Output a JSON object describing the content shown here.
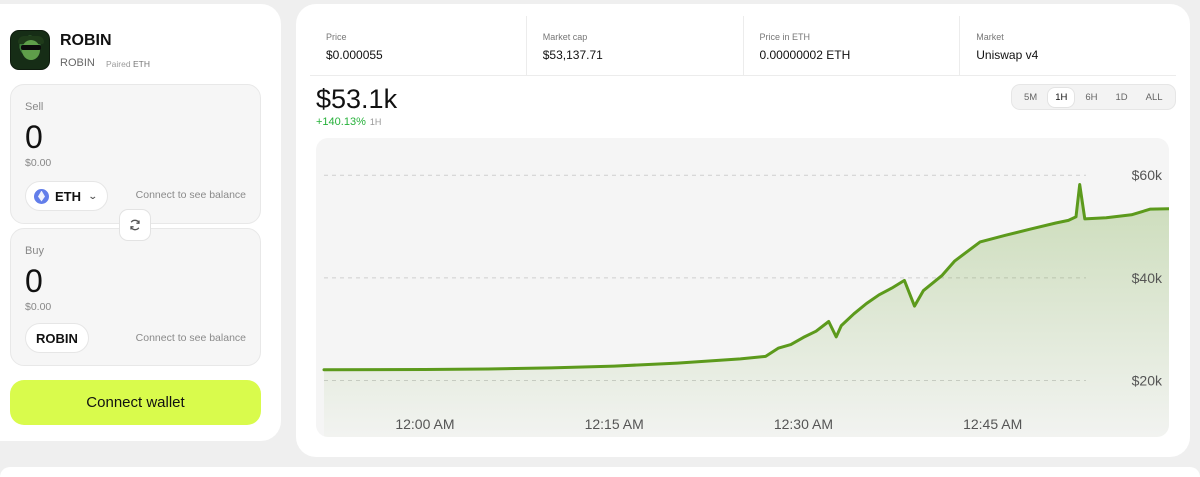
{
  "token": {
    "name": "ROBIN",
    "symbol": "ROBIN",
    "paired_label": "Paired",
    "paired_value": "ETH",
    "avatar_icon": "robin-avatar-icon"
  },
  "sell": {
    "label": "Sell",
    "amount": "0",
    "usd": "$0.00",
    "token": "ETH",
    "balance": "Connect to see balance"
  },
  "buy": {
    "label": "Buy",
    "amount": "0",
    "usd": "$0.00",
    "token": "ROBIN",
    "balance": "Connect to see balance"
  },
  "connect_wallet": "Connect wallet",
  "stats": [
    {
      "label": "Price",
      "value": "$0.000055"
    },
    {
      "label": "Market cap",
      "value": "$53,137.71"
    },
    {
      "label": "Price in ETH",
      "value": "0.00000002 ETH"
    },
    {
      "label": "Market",
      "value": "Uniswap v4"
    }
  ],
  "headline": {
    "value": "$53.1k",
    "change": "+140.13%",
    "timeframe": "1H"
  },
  "timeframes": [
    "5M",
    "1H",
    "6H",
    "1D",
    "ALL"
  ],
  "active_timeframe": "1H",
  "colors": {
    "accent": "#d9fb4c",
    "line": "#5c9a1c",
    "positive": "#26b13a"
  },
  "chart_data": {
    "type": "line",
    "x_ticks": [
      "12:00 AM",
      "12:15 AM",
      "12:30 AM",
      "12:45 AM"
    ],
    "y_ticks": [
      "$20k",
      "$40k",
      "$60k"
    ],
    "ylim": [
      20000,
      60000
    ],
    "x_range_minutes": [
      -8,
      52
    ],
    "points": [
      [
        -8,
        22100
      ],
      [
        0,
        22150
      ],
      [
        5,
        22250
      ],
      [
        10,
        22450
      ],
      [
        15,
        22800
      ],
      [
        20,
        23400
      ],
      [
        25,
        24200
      ],
      [
        27,
        24700
      ],
      [
        28,
        26300
      ],
      [
        29,
        27000
      ],
      [
        30,
        28400
      ],
      [
        31,
        29600
      ],
      [
        32,
        31500
      ],
      [
        32.6,
        28500
      ],
      [
        33,
        30700
      ],
      [
        34,
        33000
      ],
      [
        35,
        35000
      ],
      [
        36,
        36700
      ],
      [
        37,
        38000
      ],
      [
        38,
        39500
      ],
      [
        38.8,
        34500
      ],
      [
        39.5,
        37500
      ],
      [
        41,
        40500
      ],
      [
        42,
        43300
      ],
      [
        44,
        47000
      ],
      [
        46,
        48300
      ],
      [
        48,
        49500
      ],
      [
        50,
        50700
      ],
      [
        51,
        51200
      ],
      [
        51.6,
        51900
      ],
      [
        51.9,
        58200
      ],
      [
        52.3,
        51500
      ],
      [
        54,
        51700
      ],
      [
        56,
        52300
      ],
      [
        57.5,
        53400
      ],
      [
        60,
        53500
      ],
      [
        62,
        53200
      ],
      [
        64,
        53100
      ],
      [
        65,
        53100
      ]
    ],
    "grid": "dashed horizontal",
    "fill": "gradient area"
  }
}
